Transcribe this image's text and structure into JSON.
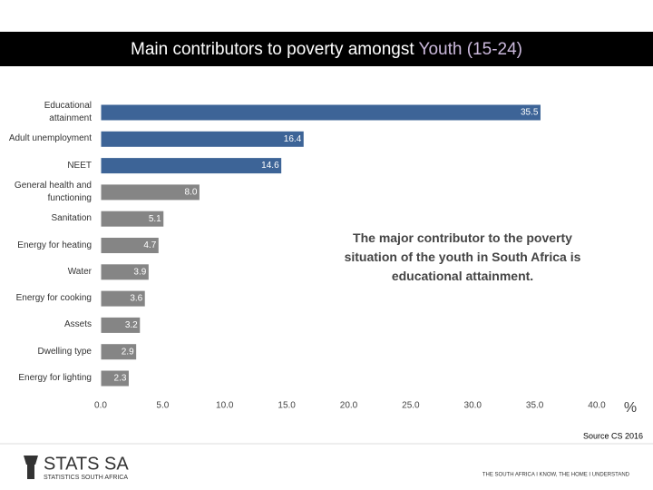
{
  "chart_data": {
    "type": "barh",
    "title": {
      "main": "Main contributors to poverty amongst",
      "highlight": "Youth (15-24)"
    },
    "categories": [
      "Educational attainment",
      "Adult unemployment",
      "NEET",
      "General health and functioning",
      "Sanitation",
      "Energy for heating",
      "Water",
      "Energy for cooking",
      "Assets",
      "Dwelling type",
      "Energy for lighting"
    ],
    "values": [
      35.5,
      16.4,
      14.6,
      8.0,
      5.1,
      4.7,
      3.9,
      3.6,
      3.2,
      2.9,
      2.3
    ],
    "value_labels": [
      "35.5",
      "16.4",
      "14.6",
      "8.0",
      "5.1",
      "4.7",
      "3.9",
      "3.6",
      "3.2",
      "2.9",
      "2.3"
    ],
    "colors": [
      "#3d6497",
      "#3d6497",
      "#3d6497",
      "#858585",
      "#858585",
      "#858585",
      "#858585",
      "#858585",
      "#858585",
      "#858585",
      "#858585"
    ],
    "xlim": [
      0,
      40
    ],
    "xticks": [
      {
        "value": 0,
        "label": "0.0"
      },
      {
        "value": 5,
        "label": "5.0"
      },
      {
        "value": 10,
        "label": "10.0"
      },
      {
        "value": 15,
        "label": "15.0"
      },
      {
        "value": 20,
        "label": "20.0"
      },
      {
        "value": 25,
        "label": "25.0"
      },
      {
        "value": 30,
        "label": "30.0"
      },
      {
        "value": 35,
        "label": "35.0"
      },
      {
        "value": 40,
        "label": "40.0"
      }
    ],
    "x_label": "%",
    "annotation": "The major contributor to the poverty situation of the youth in South Africa is educational attainment.",
    "source": "Source CS 2016"
  },
  "footer": {
    "logo": "STATS SA",
    "logo_sub": "STATISTICS SOUTH AFRICA",
    "tagline": "THE SOUTH AFRICA I KNOW, THE HOME I UNDERSTAND"
  }
}
